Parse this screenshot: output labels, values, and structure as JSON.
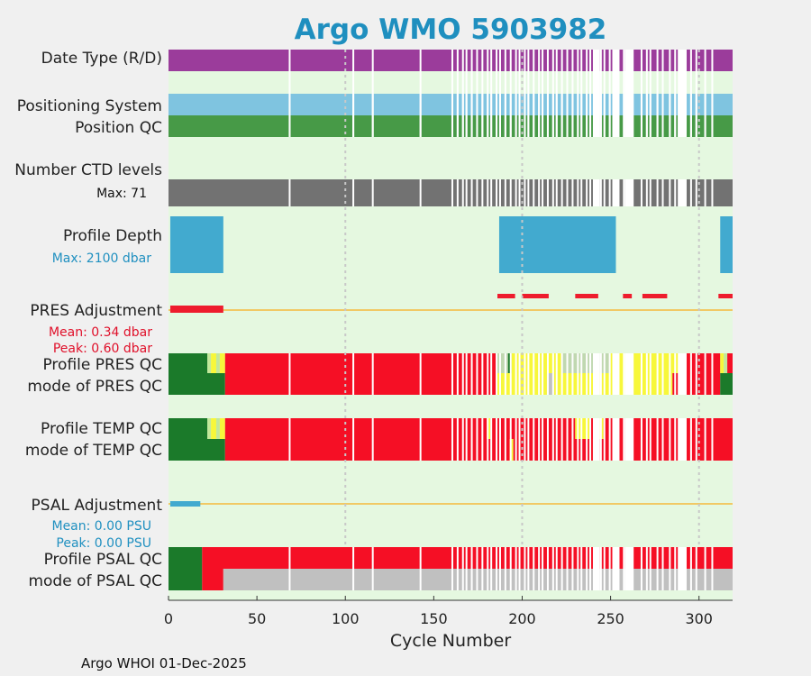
{
  "chart_data": {
    "type": "status-strip",
    "title": "Argo WMO 5903982",
    "xlabel": "Cycle Number",
    "xlim": [
      0,
      319
    ],
    "xticks": [
      0,
      50,
      100,
      150,
      200,
      250,
      300
    ],
    "footer": "Argo WHOI 01-Dec-2025",
    "rows": {
      "date_type": "Date Type (R/D)",
      "positioning": "Positioning System",
      "position_qc": "Position QC",
      "ctd_levels": "Number CTD levels",
      "ctd_max": "Max: 71",
      "profile_depth": "Profile Depth",
      "depth_max": "Max: 2100 dbar",
      "pres_adj": "PRES Adjustment",
      "pres_mean": "Mean: 0.34 dbar",
      "pres_peak": "Peak: 0.60 dbar",
      "profile_pres_qc": "Profile PRES QC",
      "mode_pres_qc": "mode of PRES QC",
      "profile_temp_qc": "Profile TEMP QC",
      "mode_temp_qc": "mode of TEMP QC",
      "psal_adj": "PSAL Adjustment",
      "psal_mean": "Mean: 0.00 PSU",
      "psal_peak": "Peak: 0.00 PSU",
      "profile_psal_qc": "Profile PSAL QC",
      "mode_psal_qc": "mode of PSAL QC"
    },
    "missing_cycles": [
      68,
      104,
      115,
      142,
      160,
      163,
      166,
      168,
      171,
      174,
      177,
      180,
      182,
      185,
      187,
      190,
      193,
      196,
      198,
      201,
      203,
      206,
      209,
      211,
      214,
      217,
      219,
      222,
      225,
      228,
      231,
      233,
      236,
      238,
      241,
      244,
      246,
      249,
      251,
      254,
      257,
      262,
      267,
      270,
      272,
      276,
      279,
      283,
      286,
      289,
      292,
      295,
      298,
      303,
      307
    ],
    "gap_ranges": [
      [
        240,
        244
      ],
      [
        251,
        255
      ],
      [
        258,
        263
      ],
      [
        288,
        292
      ]
    ],
    "depth_segments": [
      [
        1,
        31
      ],
      [
        187,
        253
      ],
      [
        312,
        319
      ]
    ],
    "pres_adj_segments": [
      [
        1,
        31
      ],
      [
        186,
        196
      ],
      [
        200,
        215
      ],
      [
        230,
        243
      ],
      [
        257,
        262
      ],
      [
        268,
        282
      ],
      [
        311,
        319
      ]
    ],
    "psal_adj_segment": [
      1,
      18
    ],
    "profile_pres_qc_segments": [
      [
        0,
        22,
        "A"
      ],
      [
        22,
        24,
        "B"
      ],
      [
        24,
        27,
        "C"
      ],
      [
        27,
        29,
        "B"
      ],
      [
        29,
        32,
        "C"
      ],
      [
        32,
        186,
        "F"
      ],
      [
        186,
        192,
        "D"
      ],
      [
        192,
        194,
        "A"
      ],
      [
        194,
        199,
        "C"
      ],
      [
        199,
        222,
        "C"
      ],
      [
        222,
        250,
        "D"
      ],
      [
        250,
        290,
        "C"
      ],
      [
        290,
        312,
        "F"
      ],
      [
        312,
        314,
        "C"
      ],
      [
        314,
        316,
        "B"
      ],
      [
        316,
        319,
        "F"
      ]
    ],
    "mode_pres_qc_segments": [
      [
        0,
        32,
        "A"
      ],
      [
        32,
        186,
        "F"
      ],
      [
        186,
        199,
        "C"
      ],
      [
        199,
        214,
        "C"
      ],
      [
        214,
        218,
        "G"
      ],
      [
        218,
        285,
        "C"
      ],
      [
        285,
        312,
        "F"
      ],
      [
        312,
        319,
        "A"
      ]
    ],
    "profile_temp_qc_segments": [
      [
        0,
        22,
        "A"
      ],
      [
        22,
        24,
        "B"
      ],
      [
        24,
        27,
        "C"
      ],
      [
        27,
        29,
        "B"
      ],
      [
        29,
        32,
        "C"
      ],
      [
        32,
        180,
        "F"
      ],
      [
        180,
        182,
        "C"
      ],
      [
        182,
        230,
        "F"
      ],
      [
        230,
        238,
        "C"
      ],
      [
        238,
        242,
        "F"
      ],
      [
        242,
        246,
        "C"
      ],
      [
        246,
        252,
        "F"
      ],
      [
        252,
        254,
        "C"
      ],
      [
        254,
        319,
        "F"
      ]
    ],
    "mode_temp_qc_segments": [
      [
        0,
        32,
        "A"
      ],
      [
        32,
        193,
        "F"
      ],
      [
        193,
        195,
        "C"
      ],
      [
        195,
        240,
        "F"
      ],
      [
        240,
        243,
        "C"
      ],
      [
        243,
        319,
        "F"
      ]
    ],
    "profile_psal_qc_segments": [
      [
        0,
        19,
        "A"
      ],
      [
        19,
        319,
        "F"
      ]
    ],
    "mode_psal_qc_segments": [
      [
        0,
        19,
        "A"
      ],
      [
        19,
        31,
        "F"
      ],
      [
        31,
        319,
        "G"
      ]
    ],
    "colors": {
      "bg_plot": "#e5f8e0",
      "title": "#1f8fbf",
      "date_type": "#9b3c9b",
      "positioning": "#7fc4e0",
      "position_qc": "#479a47",
      "ctd": "#727272",
      "depth": "#42aacf",
      "pres_adj": "#ee1c2d",
      "psal_adj": "#42aacf",
      "zero_line": "#f5b93c",
      "grid": "#c8c8c8",
      "A": "#1b7a2a",
      "B": "#c3e89a",
      "C": "#f7f73a",
      "D": "#c0d8b0",
      "F": "#f50f25",
      "G": "#c0c0c0",
      "red_text": "#e0102a",
      "blue_text": "#2090c0"
    }
  }
}
